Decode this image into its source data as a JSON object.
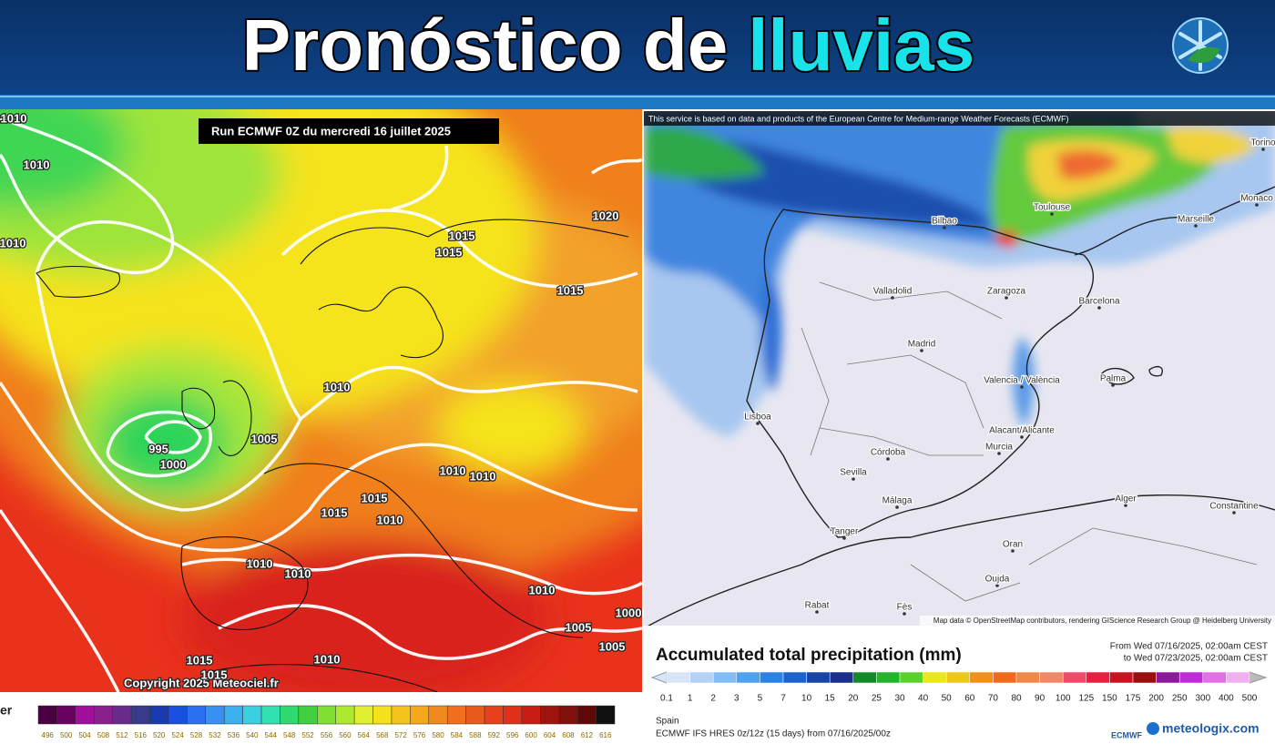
{
  "header": {
    "title": "Pronóstico de",
    "title_highlight": "lluvias"
  },
  "left_map": {
    "run_label": "Run ECMWF 0Z du mercredi 16 juillet 2025",
    "copyright": "Copyright 2025 Meteociel.fr",
    "side_label": "er",
    "isobar_labels": [
      "1010",
      "1010",
      "1010",
      "1020",
      "1015",
      "1015",
      "1015",
      "1010",
      "995",
      "1000",
      "1005",
      "1010",
      "1010",
      "1015",
      "1015",
      "1010",
      "1010",
      "1010",
      "1010",
      "1005",
      "1005",
      "1000",
      "1015",
      "1015",
      "1010"
    ],
    "scale_labels": [
      496,
      500,
      504,
      508,
      512,
      516,
      520,
      524,
      528,
      532,
      536,
      540,
      544,
      548,
      552,
      556,
      560,
      564,
      568,
      572,
      576,
      580,
      584,
      588,
      592,
      596,
      600,
      604,
      608,
      612,
      616
    ]
  },
  "right_map": {
    "source_note": "This service is based on data and products of the European Centre for Medium-range Weather Forecasts (ECMWF)",
    "attribution": "Map data © OpenStreetMap contributors, rendering GIScience Research Group @ Heidelberg University",
    "cities": [
      "Bilbao",
      "Toulouse",
      "Marseille",
      "Monaco",
      "Torino",
      "Valladolid",
      "Zaragoza",
      "Barcelona",
      "Madrid",
      "Valencia / València",
      "Palma",
      "Lisboa",
      "Alacant/Alicante",
      "Murcia",
      "Córdoba",
      "Sevilla",
      "Málaga",
      "Alger",
      "Constantine",
      "Tanger",
      "Oran",
      "Oujda",
      "Rabat",
      "Fès"
    ]
  },
  "legend": {
    "title": "Accumulated total precipitation (mm)",
    "from": "From Wed 07/16/2025, 02:00am CEST",
    "to": "to Wed 07/23/2025, 02:00am CEST",
    "labels": [
      0.1,
      1,
      2,
      3,
      5,
      7,
      10,
      15,
      20,
      25,
      30,
      40,
      50,
      60,
      70,
      80,
      90,
      100,
      125,
      150,
      175,
      200,
      250,
      300,
      400,
      500
    ],
    "region": "Spain",
    "model": "ECMWF IFS HRES 0z/12z (15 days) from 07/16/2025/00z",
    "ecmwf": "ECMWF",
    "brand": "meteologix.com"
  }
}
